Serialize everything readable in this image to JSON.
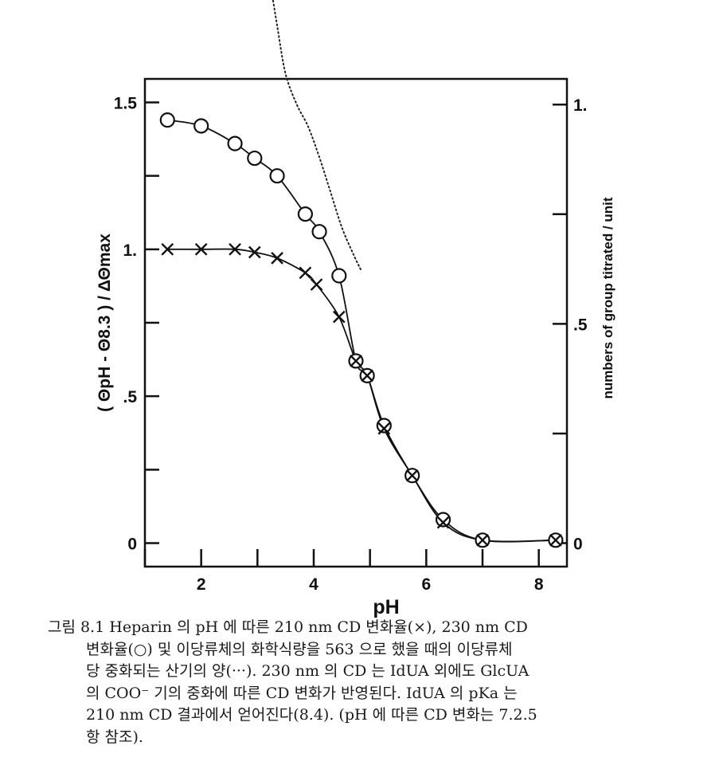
{
  "chart_data": {
    "type": "line",
    "xlabel": "pH",
    "ylabel": "( ΘpH - Θ8.3 ) / ΔΘmax",
    "ylabel_right": "numbers of group titrated / unit",
    "xlim": [
      1.0,
      8.5
    ],
    "ylim": [
      -0.08,
      1.58
    ],
    "xticks": [
      1,
      2,
      3,
      4,
      5,
      6,
      7,
      8
    ],
    "xtick_labels": [
      "2",
      "4",
      "6",
      "8"
    ],
    "xtick_label_values": [
      2,
      4,
      6,
      8
    ],
    "yticks": [
      0,
      0.25,
      0.5,
      0.75,
      1.0,
      1.25,
      1.5
    ],
    "ytick_labels": [
      "0",
      ".5",
      "1.",
      "1.5"
    ],
    "ytick_label_values": [
      0,
      0.5,
      1.0,
      1.5
    ],
    "y2_scale": 0.67,
    "y2ticks": [
      0,
      0.25,
      0.5,
      0.75,
      1.0,
      1.25
    ],
    "y2tick_labels": [
      "0",
      ".5",
      "1."
    ],
    "y2tick_label_values": [
      0,
      0.5,
      1.0
    ],
    "series": [
      {
        "marker": "circle",
        "x": [
          1.4,
          2.0,
          2.6,
          2.95,
          3.35,
          3.85,
          4.1,
          4.45,
          4.75,
          4.95,
          5.25,
          5.75,
          6.3,
          7.0,
          8.3
        ],
        "y": [
          1.44,
          1.42,
          1.36,
          1.31,
          1.25,
          1.12,
          1.06,
          0.91,
          0.62,
          0.57,
          0.4,
          0.23,
          0.08,
          0.01,
          0.01
        ]
      },
      {
        "marker": "cross",
        "x": [
          1.4,
          2.0,
          2.6,
          2.95,
          3.35,
          3.85,
          4.05,
          4.45,
          4.75,
          4.95,
          5.25,
          5.75,
          6.3,
          7.0,
          8.3
        ],
        "y": [
          1.0,
          1.0,
          1.0,
          0.99,
          0.97,
          0.92,
          0.88,
          0.77,
          0.62,
          0.57,
          0.39,
          0.23,
          0.07,
          0.01,
          0.01
        ]
      },
      {
        "marker": "dotted",
        "axis": "right",
        "x": [
          3.2,
          3.35,
          3.5,
          3.7,
          3.9,
          4.1,
          4.3,
          4.5,
          4.7,
          4.85
        ],
        "y": [
          1.3,
          1.18,
          1.07,
          1.0,
          0.95,
          0.88,
          0.8,
          0.72,
          0.66,
          0.62
        ]
      }
    ]
  },
  "caption": {
    "lines": [
      "그림 8.1  Heparin 의 pH 에  따른  210 nm  CD  변화율(×),  230 nm  CD",
      "변화율(○)  및  이당류체의 화학식량을 563 으로  했을  때의  이당류체",
      "당  중화되는  산기의  양(···).  230 nm 의  CD 는  IdUA  외에도  GlcUA",
      "의  COO⁻ 기의  중화에  따른  CD  변화가  반영된다.  IdUA 의  pKa 는",
      "210 nm  CD  결과에서  얻어진다(8.4).  (pH 에  따른  CD 변화는  7.2.5",
      "항  참조)."
    ]
  }
}
